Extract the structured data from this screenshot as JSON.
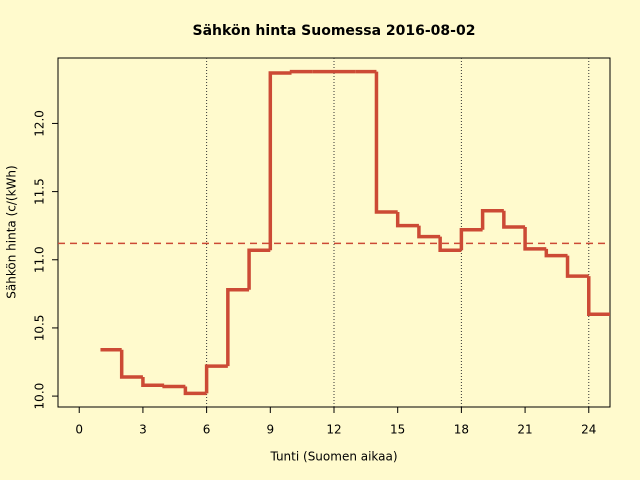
{
  "chart_data": {
    "type": "step",
    "title": "Sähkön hinta Suomessa 2016-08-02",
    "x_label": "Tunti (Suomen aikaa)",
    "y_label": "Sähkön hinta (c/(kWh)",
    "x": [
      1,
      2,
      3,
      4,
      5,
      6,
      7,
      8,
      9,
      10,
      11,
      12,
      13,
      14,
      15,
      16,
      17,
      18,
      19,
      20,
      21,
      22,
      23,
      24
    ],
    "values": [
      10.34,
      10.14,
      10.08,
      10.07,
      10.02,
      10.22,
      10.78,
      11.07,
      12.37,
      12.38,
      12.38,
      12.38,
      12.38,
      11.35,
      11.25,
      11.17,
      11.07,
      11.22,
      11.36,
      11.24,
      11.08,
      11.03,
      10.88,
      10.6
    ],
    "color": "#cc4a35",
    "mean_line": 11.12,
    "vlines": [
      6,
      12,
      18,
      24
    ],
    "xlim": [
      -1,
      25
    ],
    "ylim": [
      9.92,
      12.48
    ],
    "xticks": [
      0,
      3,
      6,
      9,
      12,
      15,
      18,
      21,
      24
    ],
    "yticks": [
      {
        "value": 10,
        "label": "10.0"
      },
      10.5,
      {
        "value": 11,
        "label": "11.0"
      },
      11.5,
      {
        "value": 12,
        "label": "12.0"
      }
    ]
  }
}
